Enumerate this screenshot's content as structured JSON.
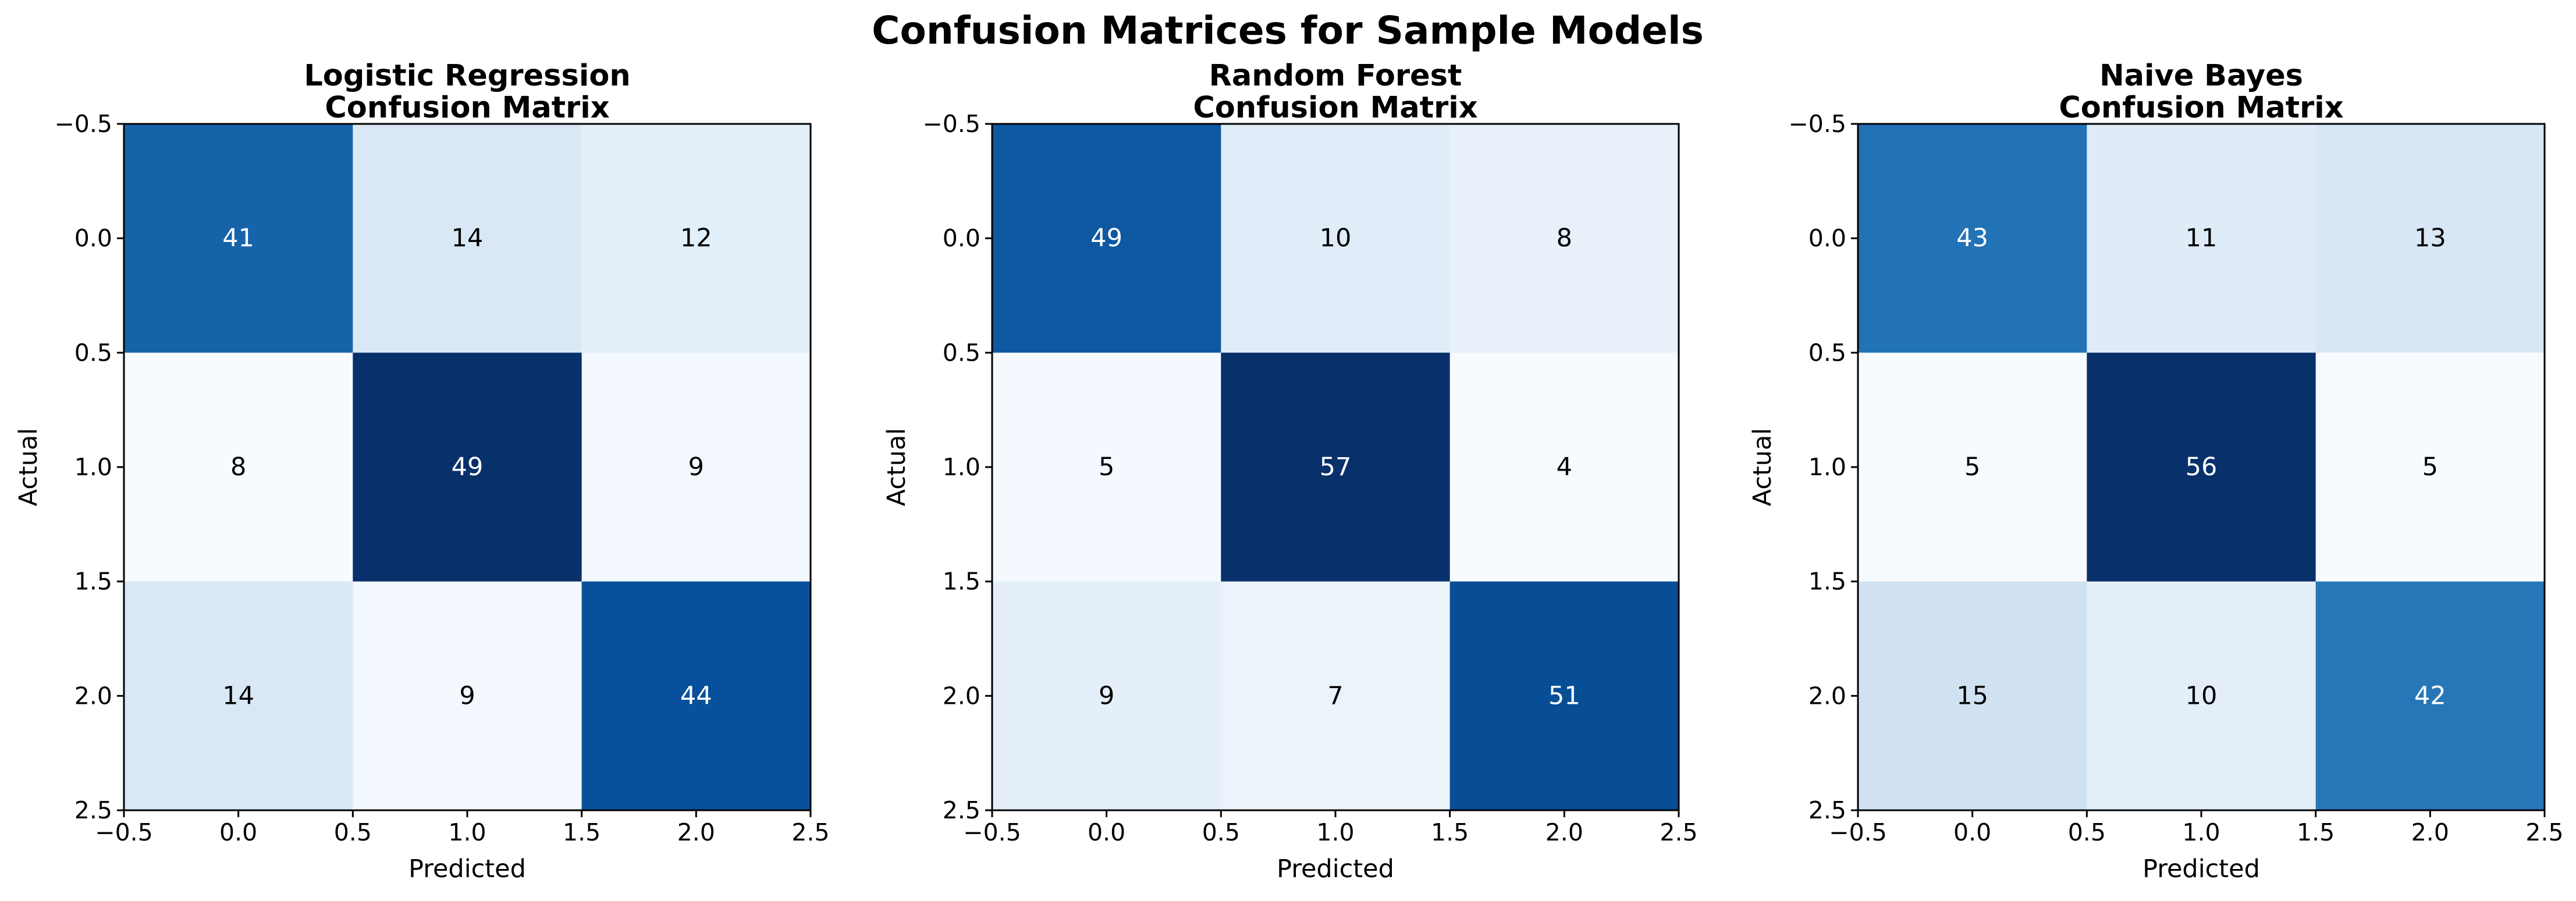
{
  "figure": {
    "title": "Confusion Matrices for Sample Models"
  },
  "chart_data": [
    {
      "type": "heatmap",
      "title": "Logistic Regression\nConfusion Matrix",
      "xlabel": "Predicted",
      "ylabel": "Actual",
      "xlim": [
        -0.5,
        2.5
      ],
      "ylim": [
        2.5,
        -0.5
      ],
      "xticks": [
        "−0.5",
        "0.0",
        "0.5",
        "1.0",
        "1.5",
        "2.0",
        "2.5"
      ],
      "yticks": [
        "−0.5",
        "0.0",
        "0.5",
        "1.0",
        "1.5",
        "2.0",
        "2.5"
      ],
      "colormap": "Blues",
      "matrix": [
        [
          41,
          14,
          12
        ],
        [
          8,
          49,
          9
        ],
        [
          14,
          9,
          44
        ]
      ],
      "grid": false
    },
    {
      "type": "heatmap",
      "title": "Random Forest\nConfusion Matrix",
      "xlabel": "Predicted",
      "ylabel": "Actual",
      "xlim": [
        -0.5,
        2.5
      ],
      "ylim": [
        2.5,
        -0.5
      ],
      "xticks": [
        "−0.5",
        "0.0",
        "0.5",
        "1.0",
        "1.5",
        "2.0",
        "2.5"
      ],
      "yticks": [
        "−0.5",
        "0.0",
        "0.5",
        "1.0",
        "1.5",
        "2.0",
        "2.5"
      ],
      "colormap": "Blues",
      "matrix": [
        [
          49,
          10,
          8
        ],
        [
          5,
          57,
          4
        ],
        [
          9,
          7,
          51
        ]
      ],
      "grid": false
    },
    {
      "type": "heatmap",
      "title": "Naive Bayes\nConfusion Matrix",
      "xlabel": "Predicted",
      "ylabel": "Actual",
      "xlim": [
        -0.5,
        2.5
      ],
      "ylim": [
        2.5,
        -0.5
      ],
      "xticks": [
        "−0.5",
        "0.0",
        "0.5",
        "1.0",
        "1.5",
        "2.0",
        "2.5"
      ],
      "yticks": [
        "−0.5",
        "0.0",
        "0.5",
        "1.0",
        "1.5",
        "2.0",
        "2.5"
      ],
      "colormap": "Blues",
      "matrix": [
        [
          43,
          11,
          13
        ],
        [
          5,
          56,
          5
        ],
        [
          15,
          10,
          42
        ]
      ],
      "grid": false
    }
  ]
}
